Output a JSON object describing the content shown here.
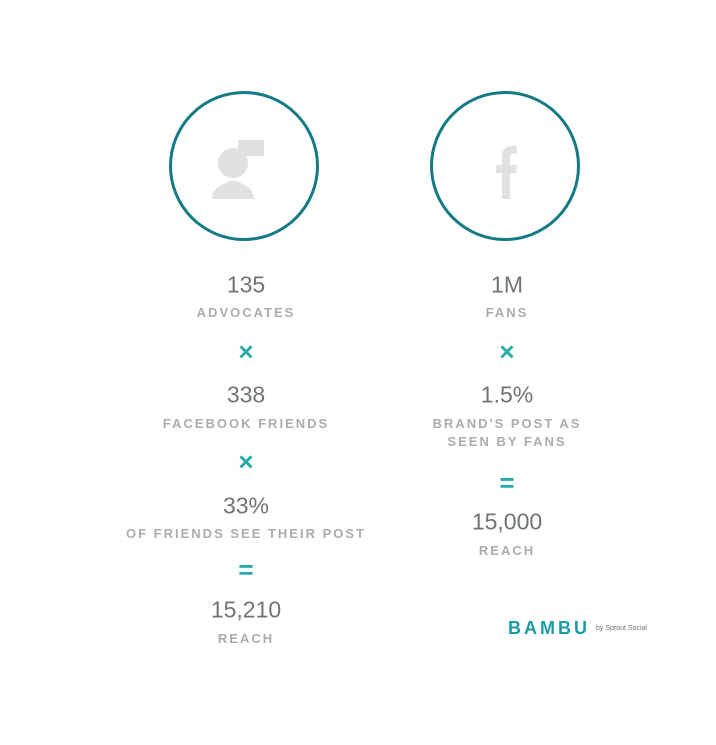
{
  "colors": {
    "circle": "#147a85",
    "operator": "#27aba9",
    "number": "#6f7476",
    "label": "#a9adaf",
    "icon": "#dfe1e2"
  },
  "left": {
    "icon": "advocate-speech-icon",
    "rows": [
      {
        "value": "135",
        "label": "ADVOCATES"
      },
      {
        "op": "×"
      },
      {
        "value": "338",
        "label": "FACEBOOK FRIENDS"
      },
      {
        "op": "×"
      },
      {
        "value": "33%",
        "label": "OF FRIENDS SEE THEIR POST"
      },
      {
        "op": "="
      },
      {
        "value": "15,210",
        "label": "REACH"
      }
    ]
  },
  "right": {
    "icon": "facebook-icon",
    "rows": [
      {
        "value": "1M",
        "label": "FANS"
      },
      {
        "op": "×"
      },
      {
        "value": "1.5%",
        "label_line1": "BRAND'S POST AS",
        "label_line2": "SEEN BY FANS"
      },
      {
        "op": "="
      },
      {
        "value": "15,000",
        "label": "REACH"
      }
    ]
  },
  "logo": {
    "brand": "BAMBU",
    "sub": "by Sprout Social"
  }
}
